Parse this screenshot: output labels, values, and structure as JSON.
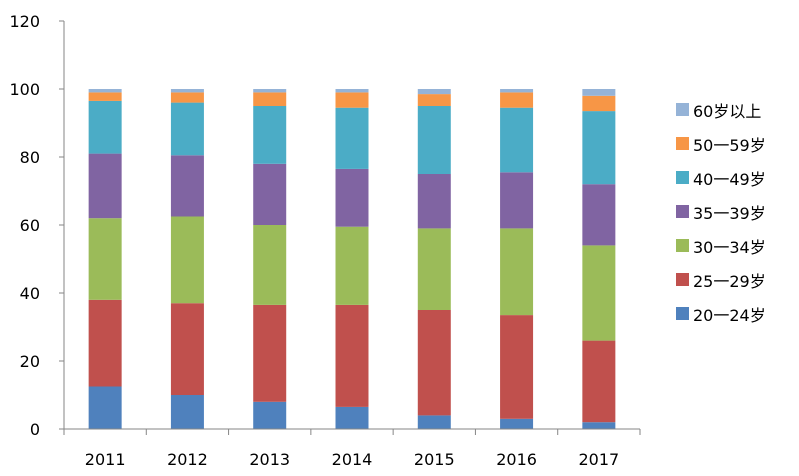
{
  "chart_data": {
    "type": "bar",
    "stacked": true,
    "categories": [
      "2011",
      "2012",
      "2013",
      "2014",
      "2015",
      "2016",
      "2017"
    ],
    "ylim": [
      0,
      120
    ],
    "yticks": [
      0,
      20,
      40,
      60,
      80,
      100,
      120
    ],
    "grid": false,
    "legend_position": "right",
    "series": [
      {
        "name": "20一24岁",
        "color": "#4F81BD",
        "values": [
          12.5,
          10,
          8,
          6.5,
          4,
          3,
          2
        ]
      },
      {
        "name": "25一29岁",
        "color": "#C0504D",
        "values": [
          25.5,
          27,
          28.5,
          30,
          31,
          30.5,
          24
        ]
      },
      {
        "name": "30一34岁",
        "color": "#9BBB59",
        "values": [
          24,
          25.5,
          23.5,
          23,
          24,
          25.5,
          28
        ]
      },
      {
        "name": "35一39岁",
        "color": "#8064A2",
        "values": [
          19,
          18,
          18,
          17,
          16,
          16.5,
          18
        ]
      },
      {
        "name": "40一49岁",
        "color": "#4BACC6",
        "values": [
          15.5,
          15.5,
          17,
          18,
          20,
          19,
          21.5
        ]
      },
      {
        "name": "50一59岁",
        "color": "#F79646",
        "values": [
          2.5,
          3,
          4,
          4.5,
          3.5,
          4.5,
          4.5
        ]
      },
      {
        "name": "60岁以上",
        "color": "#95B3D7",
        "values": [
          1,
          1,
          1,
          1,
          1.5,
          1,
          2
        ]
      }
    ]
  }
}
